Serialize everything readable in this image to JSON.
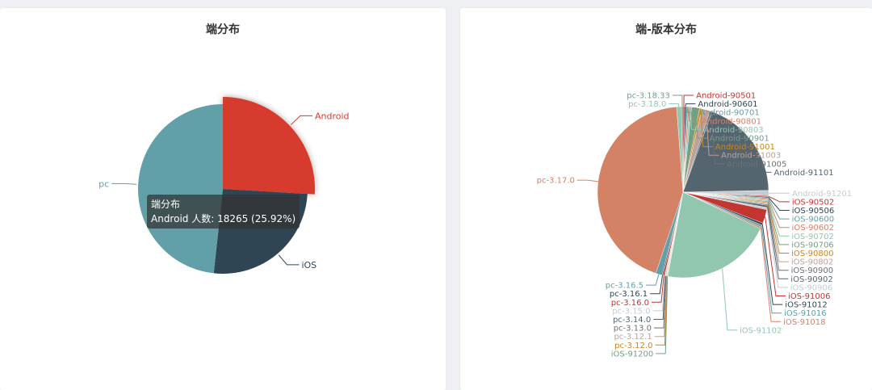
{
  "left_card": {
    "title": "端分布"
  },
  "right_card": {
    "title": "端-版本分布"
  },
  "tooltip": {
    "line1": "端分布",
    "line2": "Android 人数: 18265 (25.92%)"
  },
  "colors": {
    "android": "#d63b2f",
    "ios": "#2f4554",
    "pc": "#61a0a8"
  },
  "chart_data": [
    {
      "type": "pie",
      "title": "端分布",
      "series": [
        {
          "name": "Android",
          "value": 18265,
          "percent": 25.92,
          "color": "#d63b2f"
        },
        {
          "name": "iOS",
          "value": 18180,
          "percent": 25.8,
          "color": "#2f4554"
        },
        {
          "name": "pc",
          "value": 34022,
          "percent": 48.28,
          "color": "#61a0a8"
        }
      ],
      "highlighted": "Android"
    },
    {
      "type": "pie",
      "title": "端-版本分布",
      "series": [
        {
          "name": "Android-90501",
          "value": 0.3,
          "color": "#c23531"
        },
        {
          "name": "Android-90601",
          "value": 0.3,
          "color": "#2f4554"
        },
        {
          "name": "Android-90701",
          "value": 0.3,
          "color": "#61a0a8"
        },
        {
          "name": "Android-90801",
          "value": 0.3,
          "color": "#d48265"
        },
        {
          "name": "Android-90803",
          "value": 0.4,
          "color": "#91c7ae"
        },
        {
          "name": "Android-90901",
          "value": 1.5,
          "color": "#749f83"
        },
        {
          "name": "Android-91001",
          "value": 0.4,
          "color": "#ca8622"
        },
        {
          "name": "Android-91003",
          "value": 1.6,
          "color": "#bda29a"
        },
        {
          "name": "Android-91005",
          "value": 0.4,
          "color": "#6e7074"
        },
        {
          "name": "Android-91101",
          "value": 19.1,
          "color": "#546570"
        },
        {
          "name": "Android-91201",
          "value": 1.0,
          "color": "#c4ccd3"
        },
        {
          "name": "iOS-90502",
          "value": 0.2,
          "color": "#c23531"
        },
        {
          "name": "iOS-90506",
          "value": 0.2,
          "color": "#2f4554"
        },
        {
          "name": "iOS-90600",
          "value": 0.2,
          "color": "#61a0a8"
        },
        {
          "name": "iOS-90602",
          "value": 0.2,
          "color": "#d48265"
        },
        {
          "name": "iOS-90702",
          "value": 0.2,
          "color": "#91c7ae"
        },
        {
          "name": "iOS-90706",
          "value": 0.2,
          "color": "#749f83"
        },
        {
          "name": "iOS-90800",
          "value": 0.2,
          "color": "#ca8622"
        },
        {
          "name": "iOS-90802",
          "value": 0.2,
          "color": "#bda29a"
        },
        {
          "name": "iOS-90900",
          "value": 0.2,
          "color": "#6e7074"
        },
        {
          "name": "iOS-90902",
          "value": 0.4,
          "color": "#546570"
        },
        {
          "name": "iOS-90906",
          "value": 0.4,
          "color": "#c4ccd3"
        },
        {
          "name": "iOS-91006",
          "value": 2.6,
          "color": "#c23531"
        },
        {
          "name": "iOS-91012",
          "value": 0.4,
          "color": "#2f4554"
        },
        {
          "name": "iOS-91016",
          "value": 0.4,
          "color": "#61a0a8"
        },
        {
          "name": "iOS-91018",
          "value": 0.3,
          "color": "#d48265"
        },
        {
          "name": "iOS-91102",
          "value": 20.8,
          "color": "#91c7ae"
        },
        {
          "name": "iOS-91200",
          "value": 0.1,
          "color": "#749f83"
        },
        {
          "name": "pc-3.12.0",
          "value": 0.1,
          "color": "#ca8622"
        },
        {
          "name": "pc-3.12.1",
          "value": 0.1,
          "color": "#bda29a"
        },
        {
          "name": "pc-3.13.0",
          "value": 0.1,
          "color": "#6e7074"
        },
        {
          "name": "pc-3.14.0",
          "value": 0.1,
          "color": "#546570"
        },
        {
          "name": "pc-3.15.0",
          "value": 0.1,
          "color": "#c4ccd3"
        },
        {
          "name": "pc-3.16.0",
          "value": 0.3,
          "color": "#c23531"
        },
        {
          "name": "pc-3.16.1",
          "value": 0.2,
          "color": "#2f4554"
        },
        {
          "name": "pc-3.16.5",
          "value": 1.2,
          "color": "#61a0a8"
        },
        {
          "name": "pc-3.17.0",
          "value": 43.5,
          "color": "#d48265"
        },
        {
          "name": "pc-3.18.0",
          "value": 0.9,
          "color": "#91c7ae"
        },
        {
          "name": "pc-3.18.33",
          "value": 0.3,
          "color": "#749f83"
        }
      ]
    }
  ]
}
